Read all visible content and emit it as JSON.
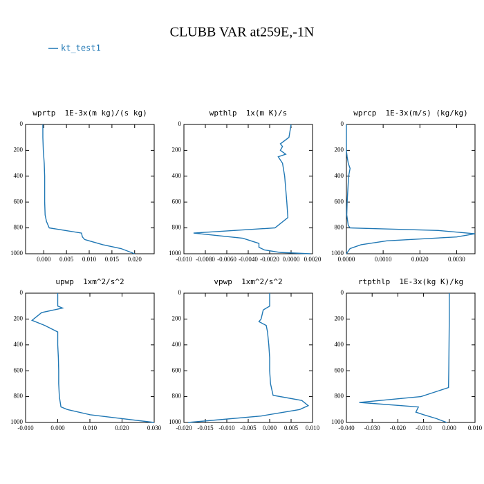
{
  "title": "CLUBB VAR at259E,-1N",
  "chart_data": [
    {
      "type": "line",
      "title": "wprtp  1E-3x(m kg)/(s kg)",
      "y": [
        0,
        100,
        200,
        300,
        400,
        500,
        600,
        700,
        750,
        800,
        840,
        870,
        890,
        930,
        960,
        1000
      ],
      "series": [
        {
          "name": "kt_test1",
          "color": "#1f77b4",
          "values": [
            -0.0002,
            -0.0002,
            -0.0001,
            0.0001,
            0.0002,
            0.0002,
            0.0002,
            0.0003,
            0.0006,
            0.0012,
            0.0083,
            0.0085,
            0.009,
            0.013,
            0.017,
            0.02
          ]
        }
      ],
      "xlim": [
        -0.004,
        0.0243
      ],
      "xticks": [
        {
          "value": 0,
          "label": "0.000"
        },
        {
          "value": 0.005,
          "label": "0.005"
        },
        {
          "value": 0.01,
          "label": "0.010"
        },
        {
          "value": 0.015,
          "label": "0.015"
        },
        {
          "value": 0.02,
          "label": "0.020"
        }
      ],
      "ylim": [
        1000,
        0
      ],
      "yticks": [
        0,
        200,
        400,
        600,
        800,
        1000
      ]
    },
    {
      "type": "line",
      "title": "wpthlp  1x(m K)/s",
      "y": [
        0,
        100,
        150,
        170,
        200,
        230,
        250,
        300,
        400,
        500,
        600,
        720,
        800,
        840,
        880,
        920,
        950,
        970,
        990,
        1000
      ],
      "series": [
        {
          "name": "kt_test1",
          "color": "#1f77b4",
          "values": [
            0,
            -0.0002,
            -0.001,
            -0.0008,
            -0.001,
            -0.0005,
            -0.0012,
            -0.0008,
            -0.0006,
            -0.0005,
            -0.0004,
            -0.0003,
            -0.0015,
            -0.0091,
            -0.0045,
            -0.003,
            -0.003,
            -0.0025,
            -0.001,
            0.0018
          ]
        }
      ],
      "xlim": [
        -0.01,
        0.002
      ],
      "xticks": [
        {
          "value": -0.01,
          "label": "-0.010"
        },
        {
          "value": -0.008,
          "label": "-0.0080"
        },
        {
          "value": -0.006,
          "label": "-0.0060"
        },
        {
          "value": -0.004,
          "label": "-0.0040"
        },
        {
          "value": -0.002,
          "label": "-0.0020"
        },
        {
          "value": 0,
          "label": "0.0000"
        },
        {
          "value": 0.002,
          "label": "0.0020"
        }
      ],
      "ylim": [
        1000,
        0
      ],
      "yticks": [
        0,
        200,
        400,
        600,
        800,
        1000
      ]
    },
    {
      "type": "line",
      "title": "wprcp  1E-3x(m/s) (kg/kg)",
      "y": [
        0,
        100,
        200,
        250,
        300,
        340,
        400,
        500,
        600,
        700,
        780,
        800,
        820,
        845,
        870,
        900,
        930,
        960,
        1000
      ],
      "series": [
        {
          "name": "kt_test1",
          "color": "#1f77b4",
          "values": [
            0,
            0,
            0,
            2e-05,
            5e-05,
            0.0001,
            6e-05,
            4e-05,
            2e-05,
            1e-05,
            5e-05,
            0.0001,
            0.0025,
            0.0035,
            0.003,
            0.0011,
            0.0004,
            0.0001,
            0
          ]
        }
      ],
      "xlim": [
        0,
        0.0035
      ],
      "xticks": [
        {
          "value": 0,
          "label": "0.0000"
        },
        {
          "value": 0.001,
          "label": "0.0010"
        },
        {
          "value": 0.002,
          "label": "0.0020"
        },
        {
          "value": 0.003,
          "label": "0.0030"
        }
      ],
      "ylim": [
        1000,
        0
      ],
      "yticks": [
        0,
        200,
        400,
        600,
        800,
        1000
      ]
    },
    {
      "type": "line",
      "title": "upwp  1xm^2/s^2",
      "y": [
        0,
        100,
        115,
        150,
        210,
        250,
        300,
        400,
        500,
        600,
        700,
        800,
        880,
        900,
        940,
        970,
        1000
      ],
      "series": [
        {
          "name": "kt_test1",
          "color": "#1f77b4",
          "values": [
            0,
            0,
            0.0015,
            -0.005,
            -0.008,
            -0.004,
            0,
            0,
            0.0002,
            0.0003,
            0.0003,
            0.0005,
            0.001,
            0.003,
            0.01,
            0.02,
            0.03
          ]
        }
      ],
      "xlim": [
        -0.01,
        0.03
      ],
      "xticks": [
        {
          "value": -0.01,
          "label": "-0.010"
        },
        {
          "value": 0,
          "label": "0.000"
        },
        {
          "value": 0.01,
          "label": "0.010"
        },
        {
          "value": 0.02,
          "label": "0.020"
        },
        {
          "value": 0.03,
          "label": "0.030"
        }
      ],
      "ylim": [
        1000,
        0
      ],
      "yticks": [
        0,
        200,
        400,
        600,
        800,
        1000
      ]
    },
    {
      "type": "line",
      "title": "vpwp  1xm^2/s^2",
      "y": [
        0,
        100,
        130,
        200,
        220,
        250,
        300,
        400,
        500,
        600,
        700,
        790,
        830,
        870,
        900,
        950,
        1000
      ],
      "series": [
        {
          "name": "kt_test1",
          "color": "#1f77b4",
          "values": [
            0,
            0,
            -0.0015,
            -0.002,
            -0.0025,
            -0.0008,
            -0.0005,
            -0.0002,
            0,
            0,
            0.0002,
            0.0008,
            0.0075,
            0.009,
            0.007,
            -0.002,
            -0.019
          ]
        }
      ],
      "xlim": [
        -0.02,
        0.01
      ],
      "xticks": [
        {
          "value": -0.02,
          "label": "-0.020"
        },
        {
          "value": -0.015,
          "label": "-0.015"
        },
        {
          "value": -0.01,
          "label": "-0.010"
        },
        {
          "value": -0.005,
          "label": "-0.005"
        },
        {
          "value": 0,
          "label": "0.000"
        },
        {
          "value": 0.005,
          "label": "0.005"
        },
        {
          "value": 0.01,
          "label": "0.010"
        }
      ],
      "ylim": [
        1000,
        0
      ],
      "yticks": [
        0,
        200,
        400,
        600,
        800,
        1000
      ]
    },
    {
      "type": "line",
      "title": "rtpthlp  1E-3x(kg K)/kg",
      "y": [
        0,
        200,
        400,
        600,
        730,
        800,
        845,
        880,
        920,
        940,
        970,
        1000
      ],
      "series": [
        {
          "name": "kt_test1",
          "color": "#1f77b4",
          "values": [
            0,
            0,
            -0.0001,
            -0.0002,
            -0.0003,
            -0.011,
            -0.035,
            -0.012,
            -0.013,
            -0.01,
            -0.005,
            -0.001
          ]
        }
      ],
      "xlim": [
        -0.04,
        0.01
      ],
      "xticks": [
        {
          "value": -0.04,
          "label": "-0.040"
        },
        {
          "value": -0.03,
          "label": "-0.030"
        },
        {
          "value": -0.02,
          "label": "-0.020"
        },
        {
          "value": -0.01,
          "label": "-0.010"
        },
        {
          "value": 0,
          "label": "0.000"
        },
        {
          "value": 0.01,
          "label": "0.010"
        }
      ],
      "ylim": [
        1000,
        0
      ],
      "yticks": [
        0,
        200,
        400,
        600,
        800,
        1000
      ]
    }
  ]
}
